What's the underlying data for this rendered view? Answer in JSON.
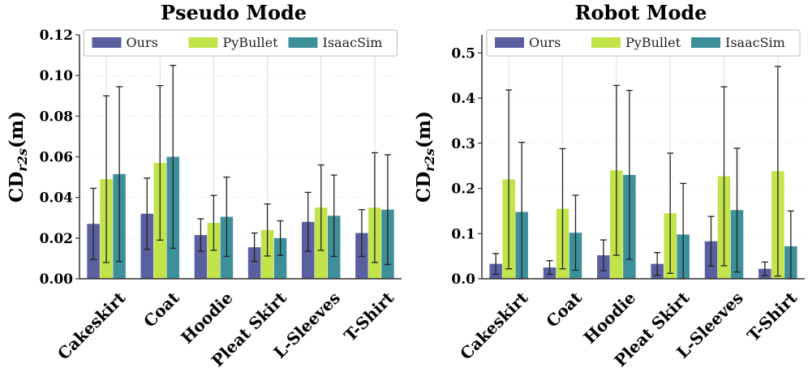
{
  "colors": {
    "ours": "#5a5fa0",
    "pybullet": "#c2e34a",
    "isaacsim": "#3d9099",
    "errorbar": "#222222"
  },
  "chart_data": [
    {
      "type": "bar",
      "title": "Pseudo Mode",
      "ylabel_main": "CD",
      "ylabel_sub": "r2s",
      "ylabel_unit": "(m)",
      "categories": [
        "Cakeskirt",
        "Coat",
        "Hoodie",
        "Pleat Skirt",
        "L-Sleeves",
        "T-Shirt"
      ],
      "series": [
        {
          "name": "Ours",
          "values": [
            0.027,
            0.032,
            0.0215,
            0.0155,
            0.028,
            0.0225
          ],
          "err": [
            0.0175,
            0.0175,
            0.008,
            0.007,
            0.0145,
            0.0115
          ]
        },
        {
          "name": "PyBullet",
          "values": [
            0.049,
            0.057,
            0.0275,
            0.024,
            0.035,
            0.035
          ],
          "err": [
            0.041,
            0.038,
            0.0135,
            0.0128,
            0.021,
            0.027
          ]
        },
        {
          "name": "IsaacSim",
          "values": [
            0.0515,
            0.06,
            0.0305,
            0.02,
            0.031,
            0.034
          ],
          "err": [
            0.043,
            0.045,
            0.0195,
            0.0085,
            0.02,
            0.027
          ]
        }
      ],
      "ylim": [
        0,
        0.12
      ],
      "yticks": [
        "0.00",
        "0.02",
        "0.04",
        "0.06",
        "0.08",
        "0.10",
        "0.12"
      ],
      "grid": true,
      "legend_position": "top"
    },
    {
      "type": "bar",
      "title": "Robot Mode",
      "ylabel_main": "CD",
      "ylabel_sub": "r2s",
      "ylabel_unit": "(m)",
      "categories": [
        "Cakeskirt",
        "Coat",
        "Hoodie",
        "Pleat Skirt",
        "L-Sleeves",
        "T-Shirt"
      ],
      "series": [
        {
          "name": "Ours",
          "values": [
            0.033,
            0.025,
            0.052,
            0.033,
            0.083,
            0.022
          ],
          "err": [
            0.023,
            0.015,
            0.034,
            0.025,
            0.055,
            0.015
          ]
        },
        {
          "name": "PyBullet",
          "values": [
            0.22,
            0.155,
            0.24,
            0.145,
            0.227,
            0.238
          ],
          "err": [
            0.198,
            0.133,
            0.188,
            0.133,
            0.198,
            0.232
          ]
        },
        {
          "name": "IsaacSim",
          "values": [
            0.148,
            0.102,
            0.23,
            0.098,
            0.152,
            0.072
          ],
          "err": [
            0.154,
            0.083,
            0.187,
            0.113,
            0.137,
            0.078
          ]
        }
      ],
      "ylim": [
        0,
        0.54
      ],
      "yticks": [
        "0.0",
        "0.1",
        "0.2",
        "0.3",
        "0.4",
        "0.5"
      ],
      "grid": true,
      "legend_position": "top"
    }
  ]
}
